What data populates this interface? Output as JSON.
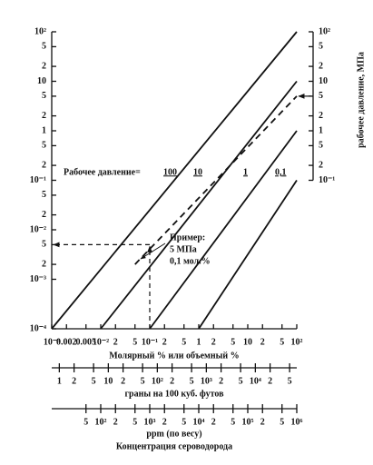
{
  "chart_data": {
    "type": "line",
    "log_scale": true,
    "xlim": [
      0.001,
      100
    ],
    "ylim": [
      0.0001,
      100
    ],
    "xlabel": "Молярный % или объемный %",
    "xticks": [
      {
        "value": 0.001,
        "label": "10⁻³"
      },
      0.002,
      0.005,
      {
        "value": 0.01,
        "label": "10⁻²"
      },
      {
        "value": 0.02,
        "label": "2"
      },
      {
        "value": 0.05,
        "label": "5"
      },
      {
        "value": 0.1,
        "label": "10⁻¹"
      },
      {
        "value": 0.2,
        "label": "2"
      },
      {
        "value": 0.5,
        "label": "5"
      },
      1,
      2,
      5,
      10,
      {
        "value": 20,
        "label": "2"
      },
      {
        "value": 50,
        "label": "5"
      },
      {
        "value": 100,
        "label": "10²"
      }
    ],
    "yticks": [
      {
        "value": 100,
        "label": "10²"
      },
      {
        "value": 50,
        "label": "5"
      },
      {
        "value": 20,
        "label": "2"
      },
      10,
      5,
      2,
      1,
      {
        "value": 0.5,
        "label": "5"
      },
      {
        "value": 0.2,
        "label": "2"
      },
      {
        "value": 0.1,
        "label": "10⁻¹"
      },
      {
        "value": 0.05,
        "label": "5"
      },
      {
        "value": 0.02,
        "label": "2"
      },
      {
        "value": 0.01,
        "label": "10⁻²"
      },
      {
        "value": 0.005,
        "label": "5"
      },
      {
        "value": 0.002,
        "label": "2"
      },
      {
        "value": 0.001,
        "label": "10⁻³"
      },
      {
        "value": 0.0001,
        "label": "10⁻⁴"
      }
    ],
    "y2lim": [
      0.1,
      100
    ],
    "y2label": "рабочее давление, МПа",
    "y2ticks": [
      {
        "value": 100,
        "label": "10²"
      },
      {
        "value": 50,
        "label": "5"
      },
      {
        "value": 20,
        "label": "2"
      },
      10,
      5,
      2,
      1,
      {
        "value": 0.5,
        "label": "5"
      },
      {
        "value": 0.2,
        "label": "2"
      },
      {
        "value": 0.1,
        "label": "10⁻¹"
      }
    ],
    "legend_title": "Рабочее давление=",
    "series": [
      {
        "name": "100",
        "color": "#111111",
        "dashed": false,
        "x": [
          0.001,
          100
        ],
        "values": [
          0.0001,
          100
        ]
      },
      {
        "name": "10",
        "color": "#111111",
        "dashed": false,
        "x": [
          0.01,
          100
        ],
        "values": [
          0.0001,
          10
        ]
      },
      {
        "name": "5 МПа",
        "color": "#111111",
        "dashed": true,
        "x": [
          0.05,
          100
        ],
        "values": [
          0.002,
          5
        ]
      },
      {
        "name": "1",
        "color": "#111111",
        "dashed": false,
        "x": [
          0.1,
          100
        ],
        "values": [
          0.0001,
          1
        ]
      },
      {
        "name": "0,1",
        "color": "#111111",
        "dashed": false,
        "x": [
          1,
          100
        ],
        "values": [
          0.0001,
          0.1
        ]
      }
    ],
    "example": {
      "title": "Пример:",
      "text": "0,1 мол.%",
      "x": 0.1,
      "y": 0.005,
      "pressure": 5
    },
    "extra_axes": [
      {
        "label": "граны на 100 куб. футов",
        "xlim": [
          0.7,
          70000
        ],
        "xticks": [
          1,
          2,
          5,
          10,
          {
            "value": 20,
            "label": "2"
          },
          {
            "value": 50,
            "label": "5"
          },
          {
            "value": 100,
            "label": "10²"
          },
          {
            "value": 200,
            "label": "2"
          },
          {
            "value": 500,
            "label": "5"
          },
          {
            "value": 1000,
            "label": "10³"
          },
          {
            "value": 2000,
            "label": "2"
          },
          {
            "value": 5000,
            "label": "5"
          },
          {
            "value": 10000,
            "label": "10⁴"
          },
          {
            "value": 20000,
            "label": "2"
          },
          {
            "value": 50000,
            "label": "5"
          }
        ]
      },
      {
        "label": "ppm (по весу)",
        "xlim": [
          10,
          1000000
        ],
        "xticks": [
          {
            "value": 50,
            "label": "5"
          },
          {
            "value": 100,
            "label": "10²"
          },
          {
            "value": 200,
            "label": "2"
          },
          {
            "value": 500,
            "label": "5"
          },
          {
            "value": 1000,
            "label": "10³"
          },
          {
            "value": 2000,
            "label": "2"
          },
          {
            "value": 5000,
            "label": "5"
          },
          {
            "value": 10000,
            "label": "10⁴"
          },
          {
            "value": 20000,
            "label": "2"
          },
          {
            "value": 50000,
            "label": "5"
          },
          {
            "value": 100000,
            "label": "10⁵"
          },
          {
            "value": 200000,
            "label": "2"
          },
          {
            "value": 500000,
            "label": "5"
          },
          {
            "value": 1000000,
            "label": "10⁶"
          }
        ]
      }
    ],
    "caption": "Концентрация сероводорода"
  }
}
